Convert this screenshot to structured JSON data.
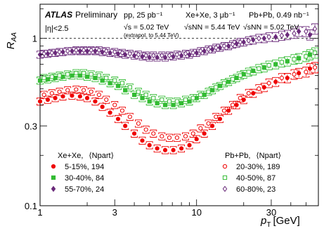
{
  "chart_data": {
    "type": "scatter",
    "xlabel_main": "p",
    "xlabel_sub": "T",
    "xlabel_unit": "[GeV]",
    "ylabel_main": "R",
    "ylabel_sub": "AA",
    "x_scale": "log",
    "y_scale": "log",
    "xlim": [
      1,
      60
    ],
    "ylim": [
      0.1,
      1.6
    ],
    "x_ticks": [
      {
        "v": 1,
        "label": "1"
      },
      {
        "v": 3,
        "label": "3"
      },
      {
        "v": 10,
        "label": "10"
      },
      {
        "v": 30,
        "label": "30"
      }
    ],
    "y_ticks": [
      {
        "v": 0.1,
        "label": "0.1"
      },
      {
        "v": 0.3,
        "label": "0.3"
      },
      {
        "v": 1,
        "label": "1"
      }
    ],
    "reference_line": 1,
    "annotations": {
      "atlas": "ATLAS",
      "preliminary": "Preliminary",
      "eta": "|η|<2.5",
      "pp_label": "pp, 25 pb⁻¹",
      "pp_energy": "√s = 5.02 TeV",
      "pp_note": "(extrapol. to 5.44 TeV)",
      "xexe_label": "Xe+Xe, 3 μb⁻¹",
      "xexe_energy": "√sNN = 5.44 TeV",
      "pbpb_label": "Pb+Pb, 0.49 nb⁻¹",
      "pbpb_energy": "√sNN = 5.02 TeV"
    },
    "legend_xexe": {
      "system": "Xe+Xe,",
      "npart": "⟨Npart⟩"
    },
    "legend_pbpb": {
      "system": "Pb+Pb,",
      "npart": "⟨Npart⟩"
    },
    "series": [
      {
        "name": "5-15%,  194",
        "system": "Xe+Xe",
        "marker": "filled-circle",
        "color": "#ee0000",
        "x": [
          1.0,
          1.12,
          1.25,
          1.4,
          1.6,
          1.8,
          2.0,
          2.25,
          2.5,
          2.8,
          3.15,
          3.5,
          4.0,
          4.5,
          5.0,
          5.6,
          6.3,
          7.1,
          8.0,
          9.0,
          10.0,
          11.2,
          12.6,
          14.1,
          16.0,
          18.0,
          20.0,
          23.0,
          27.0,
          32.0,
          38.0,
          45.0,
          53.0
        ],
        "y": [
          0.42,
          0.43,
          0.44,
          0.45,
          0.455,
          0.45,
          0.44,
          0.42,
          0.39,
          0.36,
          0.33,
          0.3,
          0.27,
          0.245,
          0.23,
          0.22,
          0.215,
          0.215,
          0.22,
          0.23,
          0.25,
          0.27,
          0.3,
          0.33,
          0.37,
          0.4,
          0.43,
          0.47,
          0.51,
          0.55,
          0.58,
          0.62,
          0.66
        ]
      },
      {
        "name": "30-40%,  84",
        "system": "Xe+Xe",
        "marker": "filled-square",
        "color": "#33bb33",
        "x": [
          1.0,
          1.12,
          1.25,
          1.4,
          1.6,
          1.8,
          2.0,
          2.25,
          2.5,
          2.8,
          3.15,
          3.5,
          4.0,
          4.5,
          5.0,
          5.6,
          6.3,
          7.1,
          8.0,
          9.0,
          10.0,
          11.2,
          12.6,
          14.1,
          16.0,
          18.0,
          20.0,
          23.0,
          27.0,
          32.0,
          38.0,
          45.0,
          53.0
        ],
        "y": [
          0.56,
          0.57,
          0.58,
          0.59,
          0.6,
          0.6,
          0.59,
          0.58,
          0.56,
          0.54,
          0.52,
          0.49,
          0.46,
          0.44,
          0.42,
          0.41,
          0.4,
          0.4,
          0.41,
          0.42,
          0.44,
          0.46,
          0.49,
          0.52,
          0.55,
          0.58,
          0.61,
          0.64,
          0.67,
          0.7,
          0.73,
          0.76,
          0.8
        ]
      },
      {
        "name": "55-70%,  24",
        "system": "Xe+Xe",
        "marker": "filled-diamond",
        "color": "#6a2a7a",
        "x": [
          1.0,
          1.12,
          1.25,
          1.4,
          1.6,
          1.8,
          2.0,
          2.25,
          2.5,
          2.8,
          3.15,
          3.5,
          4.0,
          4.5,
          5.0,
          5.6,
          6.3,
          7.1,
          8.0,
          9.0,
          10.0,
          11.2,
          12.6,
          14.1,
          16.0,
          18.0,
          20.0,
          23.0,
          27.0,
          32.0,
          38.0,
          45.0,
          53.0
        ],
        "y": [
          0.8,
          0.81,
          0.82,
          0.83,
          0.84,
          0.84,
          0.84,
          0.84,
          0.83,
          0.82,
          0.81,
          0.8,
          0.79,
          0.78,
          0.77,
          0.77,
          0.77,
          0.78,
          0.79,
          0.8,
          0.82,
          0.84,
          0.86,
          0.88,
          0.9,
          0.93,
          0.95,
          0.98,
          1.0,
          1.02,
          1.05,
          1.1,
          1.05
        ]
      },
      {
        "name": "20-30%,  189",
        "system": "Pb+Pb",
        "marker": "open-circle",
        "color": "#ee0000",
        "x": [
          1.06,
          1.19,
          1.33,
          1.5,
          1.7,
          1.9,
          2.12,
          2.38,
          2.65,
          3.0,
          3.35,
          3.75,
          4.25,
          4.75,
          5.3,
          6.0,
          6.7,
          7.5,
          8.5,
          9.5,
          10.6,
          11.9,
          13.3,
          15.0,
          17.0,
          19.0,
          21.5,
          25.0,
          29.0,
          35.0,
          42.0,
          50.0,
          57.0
        ],
        "y": [
          0.46,
          0.47,
          0.48,
          0.49,
          0.495,
          0.49,
          0.48,
          0.46,
          0.43,
          0.4,
          0.37,
          0.34,
          0.31,
          0.285,
          0.27,
          0.26,
          0.255,
          0.255,
          0.26,
          0.27,
          0.29,
          0.31,
          0.34,
          0.37,
          0.4,
          0.44,
          0.47,
          0.5,
          0.54,
          0.58,
          0.61,
          0.63,
          0.67
        ]
      },
      {
        "name": "40-50%,  87",
        "system": "Pb+Pb",
        "marker": "open-square",
        "color": "#33bb33",
        "x": [
          1.06,
          1.19,
          1.33,
          1.5,
          1.7,
          1.9,
          2.12,
          2.38,
          2.65,
          3.0,
          3.35,
          3.75,
          4.25,
          4.75,
          5.3,
          6.0,
          6.7,
          7.5,
          8.5,
          9.5,
          10.6,
          11.9,
          13.3,
          15.0,
          17.0,
          19.0,
          21.5,
          25.0,
          29.0,
          35.0,
          42.0,
          50.0,
          57.0
        ],
        "y": [
          0.58,
          0.59,
          0.6,
          0.61,
          0.62,
          0.62,
          0.61,
          0.6,
          0.58,
          0.56,
          0.54,
          0.51,
          0.48,
          0.46,
          0.44,
          0.43,
          0.42,
          0.42,
          0.43,
          0.44,
          0.46,
          0.48,
          0.51,
          0.54,
          0.57,
          0.6,
          0.63,
          0.66,
          0.69,
          0.72,
          0.75,
          0.78,
          0.82
        ]
      },
      {
        "name": "60-80%,  23",
        "system": "Pb+Pb",
        "marker": "open-diamond",
        "color": "#6a2a7a",
        "x": [
          1.06,
          1.19,
          1.33,
          1.5,
          1.7,
          1.9,
          2.12,
          2.38,
          2.65,
          3.0,
          3.35,
          3.75,
          4.25,
          4.75,
          5.3,
          6.0,
          6.7,
          7.5,
          8.5,
          9.5,
          10.6,
          11.9,
          13.3,
          15.0,
          17.0,
          19.0,
          21.5,
          25.0,
          29.0,
          35.0,
          42.0,
          50.0,
          57.0
        ],
        "y": [
          0.81,
          0.82,
          0.83,
          0.84,
          0.85,
          0.85,
          0.85,
          0.85,
          0.84,
          0.83,
          0.82,
          0.81,
          0.8,
          0.79,
          0.79,
          0.79,
          0.79,
          0.8,
          0.81,
          0.82,
          0.84,
          0.86,
          0.88,
          0.9,
          0.92,
          0.95,
          0.97,
          1.0,
          1.02,
          1.04,
          1.07,
          1.1,
          1.14
        ]
      }
    ]
  }
}
